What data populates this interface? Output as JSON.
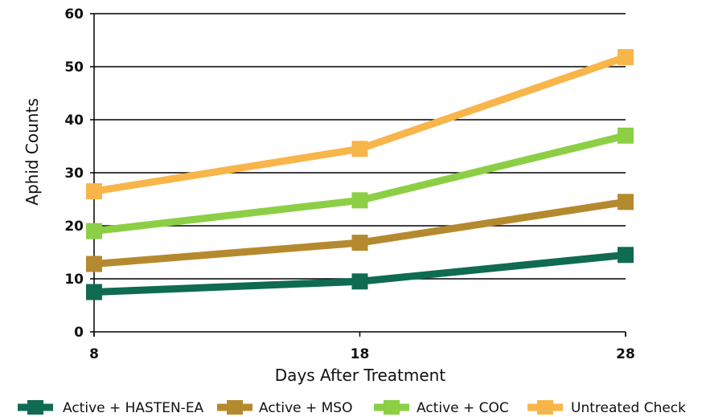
{
  "chart_data": {
    "type": "line",
    "x": [
      8,
      18,
      28
    ],
    "xlabel": "Days After Treatment",
    "ylabel": "Aphid Counts",
    "xlim": [
      8,
      28
    ],
    "ylim": [
      0,
      60
    ],
    "xticks": [
      "8",
      "18",
      "28"
    ],
    "yticks": [
      "0",
      "10",
      "20",
      "30",
      "40",
      "50",
      "60"
    ],
    "grid": "horizontal",
    "legend_position": "bottom",
    "series": [
      {
        "name": "Active + HASTEN-EA",
        "values": [
          7.5,
          9.5,
          14.5
        ],
        "color": "#0f6b52"
      },
      {
        "name": "Active + MSO",
        "values": [
          12.8,
          16.8,
          24.5
        ],
        "color": "#b58a2f"
      },
      {
        "name": "Active + COC",
        "values": [
          19,
          24.8,
          37
        ],
        "color": "#8ccf45"
      },
      {
        "name": "Untreated Check",
        "values": [
          26.5,
          34.5,
          51.8
        ],
        "color": "#f8b54a"
      }
    ]
  }
}
